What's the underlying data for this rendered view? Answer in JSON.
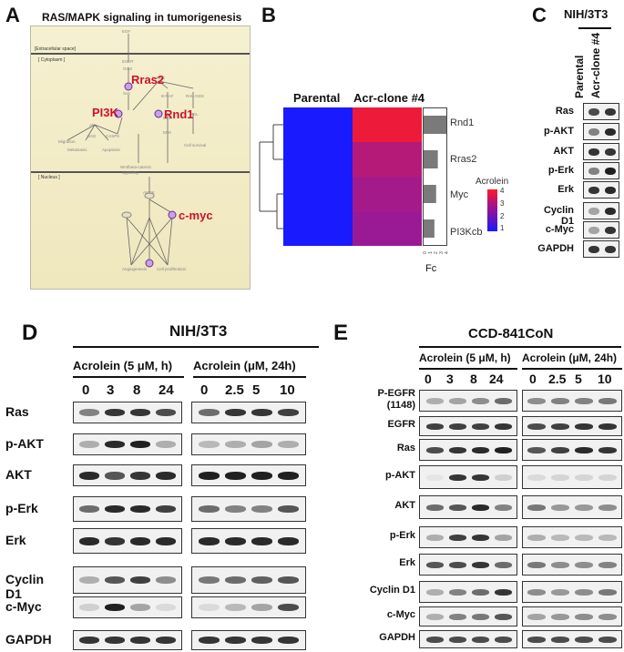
{
  "panelA": {
    "letter": "A",
    "title": "RAS/MAPK  signaling in tumorigenesis",
    "compartments": [
      "[Extracellular space]",
      "[ Cytoplasm ]",
      "[ Nucleus ]"
    ],
    "highlights": [
      "Rras2",
      "PI3K",
      "Rnd1",
      "c-myc"
    ],
    "nodes": [
      "EGF",
      "EGFR",
      "Grb2",
      "Sos",
      "Rras2",
      "B-RAF",
      "RAL-GDS",
      "MEK",
      "ERK",
      "Ral",
      "Akt",
      "BAD",
      "CASP9",
      "Migration",
      "Metastasis",
      "Apoptosis",
      "Cell survival",
      "Wnt/beta-catenin signaling",
      "AMPK",
      "MYC",
      "Angiogenesis",
      "Cell proliferation"
    ]
  },
  "panelB": {
    "letter": "B",
    "col_labels": [
      "Parental",
      "Acr-clone #4"
    ],
    "row_labels": [
      "Rnd1",
      "Rras2",
      "Myc",
      "PI3Kcb"
    ],
    "cell_colors": [
      [
        "#1a1aff",
        "#ee1a3a"
      ],
      [
        "#1a1aff",
        "#b61a78"
      ],
      [
        "#1a1aff",
        "#a51a8a"
      ],
      [
        "#1a1aff",
        "#9a1a96"
      ]
    ],
    "fc_values": [
      4.0,
      2.5,
      2.2,
      1.9
    ],
    "fc_label": "Fc",
    "fc_ticks": [
      "0",
      "1",
      "2",
      "3",
      "4"
    ],
    "legend_title": "Acrolein",
    "legend_ticks": [
      "4",
      "3",
      "2",
      "1"
    ],
    "legend_colors": [
      "#ff1a2a",
      "#b0147a",
      "#6a14b8",
      "#1a1aff"
    ]
  },
  "panelC": {
    "letter": "C",
    "cell_line": "NIH/3T3",
    "lanes": [
      "Parental",
      "Acr-clone #4"
    ],
    "rows": [
      "Ras",
      "p-AKT",
      "AKT",
      "p-Erk",
      "Erk",
      "Cyclin D1",
      "c-Myc",
      "GAPDH"
    ]
  },
  "panelD": {
    "letter": "D",
    "cell_line": "NIH/3T3",
    "group1": {
      "label": "Acrolein  (5 μM, h)",
      "lanes": [
        "0",
        "3",
        "8",
        "24"
      ]
    },
    "group2": {
      "label": "Acrolein  (μM, 24h)",
      "lanes": [
        "0",
        "2.5",
        "5",
        "10"
      ]
    },
    "rows": [
      "Ras",
      "p-AKT",
      "AKT",
      "p-Erk",
      "Erk",
      "Cyclin D1",
      "c-Myc",
      "GAPDH"
    ]
  },
  "panelE": {
    "letter": "E",
    "cell_line": "CCD-841CoN",
    "group1": {
      "label": "Acrolein  (5 μM, h)",
      "lanes": [
        "0",
        "3",
        "8",
        "24"
      ]
    },
    "group2": {
      "label": "Acrolein  (μM, 24h)",
      "lanes": [
        "0",
        "2.5",
        "5",
        "10"
      ]
    },
    "rows": [
      "P-EGFR\n(1148)",
      "EGFR",
      "Ras",
      "p-AKT",
      "AKT",
      "p-Erk",
      "Erk",
      "Cyclin D1",
      "c-Myc",
      "GAPDH"
    ]
  },
  "colors": {
    "band": "#1a1a1a",
    "blot_bg": "#f1f1f1",
    "highlight": "#d0102a"
  }
}
